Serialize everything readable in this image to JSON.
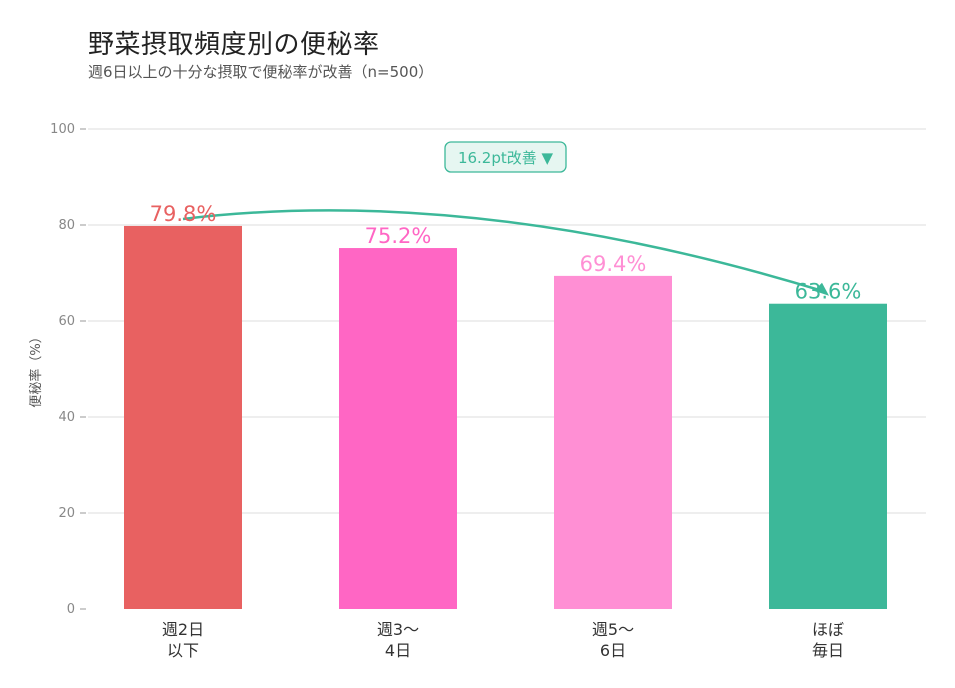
{
  "title": "野菜摂取頻度別の便秘率",
  "subtitle": "週6日以上の十分な摂取で便秘率が改善（n=500）",
  "chart_data": {
    "type": "bar",
    "title": "野菜摂取頻度別の便秘率",
    "subtitle": "週6日以上の十分な摂取で便秘率が改善（n=500）",
    "ylabel": "便秘率（%）",
    "ylim": [
      0,
      100
    ],
    "yticks": [
      0,
      20,
      40,
      60,
      80,
      100
    ],
    "grid": true,
    "categories": [
      [
        "週2日",
        "以下"
      ],
      [
        "週3～",
        "4日"
      ],
      [
        "週5～",
        "6日"
      ],
      [
        "ほぼ",
        "毎日"
      ]
    ],
    "values": [
      79.8,
      75.2,
      69.4,
      63.6
    ],
    "value_labels": [
      "79.8%",
      "75.2%",
      "69.4%",
      "63.6%"
    ],
    "colors": [
      "#e86161",
      "#ff66c4",
      "#ff8fd4",
      "#3cb899"
    ],
    "annotation": {
      "text": "16.2pt改善 ▼",
      "color": "#3cb899",
      "from_category": 0,
      "to_category": 3
    }
  }
}
